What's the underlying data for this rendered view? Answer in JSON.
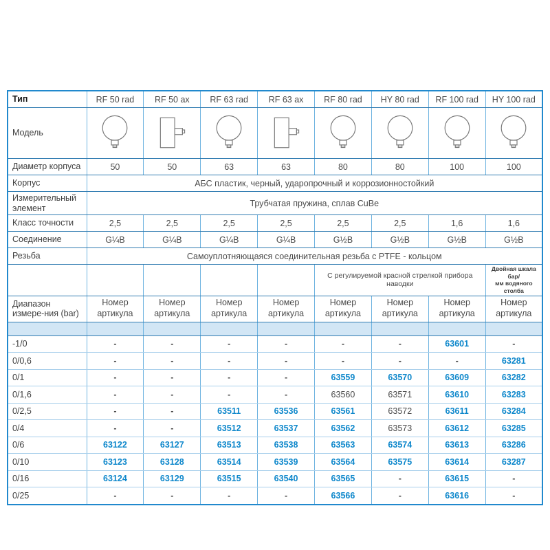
{
  "colors": {
    "accent_blue": "#0d87cb",
    "outer_border": "#2189cd",
    "section_border": "#2e7ab0",
    "light_border": "#a8cfeb",
    "vertical_border": "#6db3e0",
    "band_background": "#d2e6f5"
  },
  "table": {
    "type_label": "Тип",
    "model_label": "Модель",
    "columns": [
      "RF 50 rad",
      "RF 50 ax",
      "RF 63 rad",
      "RF 63 ax",
      "RF 80 rad",
      "HY 80 rad",
      "RF 100 rad",
      "HY 100 rad"
    ],
    "gauge_icons": [
      "gauge-radial-icon",
      "gauge-axial-icon",
      "gauge-radial-icon",
      "gauge-axial-icon",
      "gauge-radial-icon",
      "gauge-radial-icon",
      "gauge-radial-icon",
      "gauge-radial-icon"
    ],
    "spec_rows": [
      {
        "key": "diameter",
        "label": "Диаметр корпуса",
        "values": [
          "50",
          "50",
          "63",
          "63",
          "80",
          "80",
          "100",
          "100"
        ]
      },
      {
        "key": "body",
        "label": "Корпус",
        "span_value": "АБС пластик, черный, ударопрочный и коррозионностойкий"
      },
      {
        "key": "element",
        "label": "Измерительный элемент",
        "span_value": "Трубчатая пружина, сплав CuBe"
      },
      {
        "key": "accuracy",
        "label": "Класс точности",
        "values": [
          "2,5",
          "2,5",
          "2,5",
          "2,5",
          "2,5",
          "2,5",
          "1,6",
          "1,6"
        ]
      },
      {
        "key": "connection",
        "label": "Соединение",
        "values": [
          "G¼B",
          "G¼B",
          "G¼B",
          "G¼B",
          "G½B",
          "G½B",
          "G½B",
          "G½B"
        ]
      },
      {
        "key": "thread",
        "label": "Резьба",
        "span_value": "Самоуплотняющаяся соединительная резьба с PTFE - кольцом"
      }
    ],
    "feature_notes": {
      "red_pointer": "С регулируемой красной стрелкой прибора наводки",
      "dual_scale_line1": "Двойная шкала бар/",
      "dual_scale_line2": "мм водяного столба"
    },
    "range_section": {
      "label": "Диапазон измере-ния (bar)",
      "article_header": "Номер артикула"
    },
    "plain_article_numbers": [
      "63560",
      "63571",
      "63572",
      "63573"
    ],
    "ranges": [
      {
        "range": "-1/0",
        "articles": [
          "-",
          "-",
          "-",
          "-",
          "-",
          "-",
          "63601",
          "-"
        ]
      },
      {
        "range": "0/0,6",
        "articles": [
          "-",
          "-",
          "-",
          "-",
          "-",
          "-",
          "-",
          "63281"
        ]
      },
      {
        "range": "0/1",
        "articles": [
          "-",
          "-",
          "-",
          "-",
          "63559",
          "63570",
          "63609",
          "63282"
        ]
      },
      {
        "range": "0/1,6",
        "articles": [
          "-",
          "-",
          "-",
          "-",
          "63560",
          "63571",
          "63610",
          "63283"
        ]
      },
      {
        "range": "0/2,5",
        "articles": [
          "-",
          "-",
          "63511",
          "63536",
          "63561",
          "63572",
          "63611",
          "63284"
        ]
      },
      {
        "range": "0/4",
        "articles": [
          "-",
          "-",
          "63512",
          "63537",
          "63562",
          "63573",
          "63612",
          "63285"
        ]
      },
      {
        "range": "0/6",
        "articles": [
          "63122",
          "63127",
          "63513",
          "63538",
          "63563",
          "63574",
          "63613",
          "63286"
        ]
      },
      {
        "range": "0/10",
        "articles": [
          "63123",
          "63128",
          "63514",
          "63539",
          "63564",
          "63575",
          "63614",
          "63287"
        ]
      },
      {
        "range": "0/16",
        "articles": [
          "63124",
          "63129",
          "63515",
          "63540",
          "63565",
          "-",
          "63615",
          "-"
        ]
      },
      {
        "range": "0/25",
        "articles": [
          "-",
          "-",
          "-",
          "-",
          "63566",
          "-",
          "63616",
          "-"
        ]
      }
    ]
  }
}
